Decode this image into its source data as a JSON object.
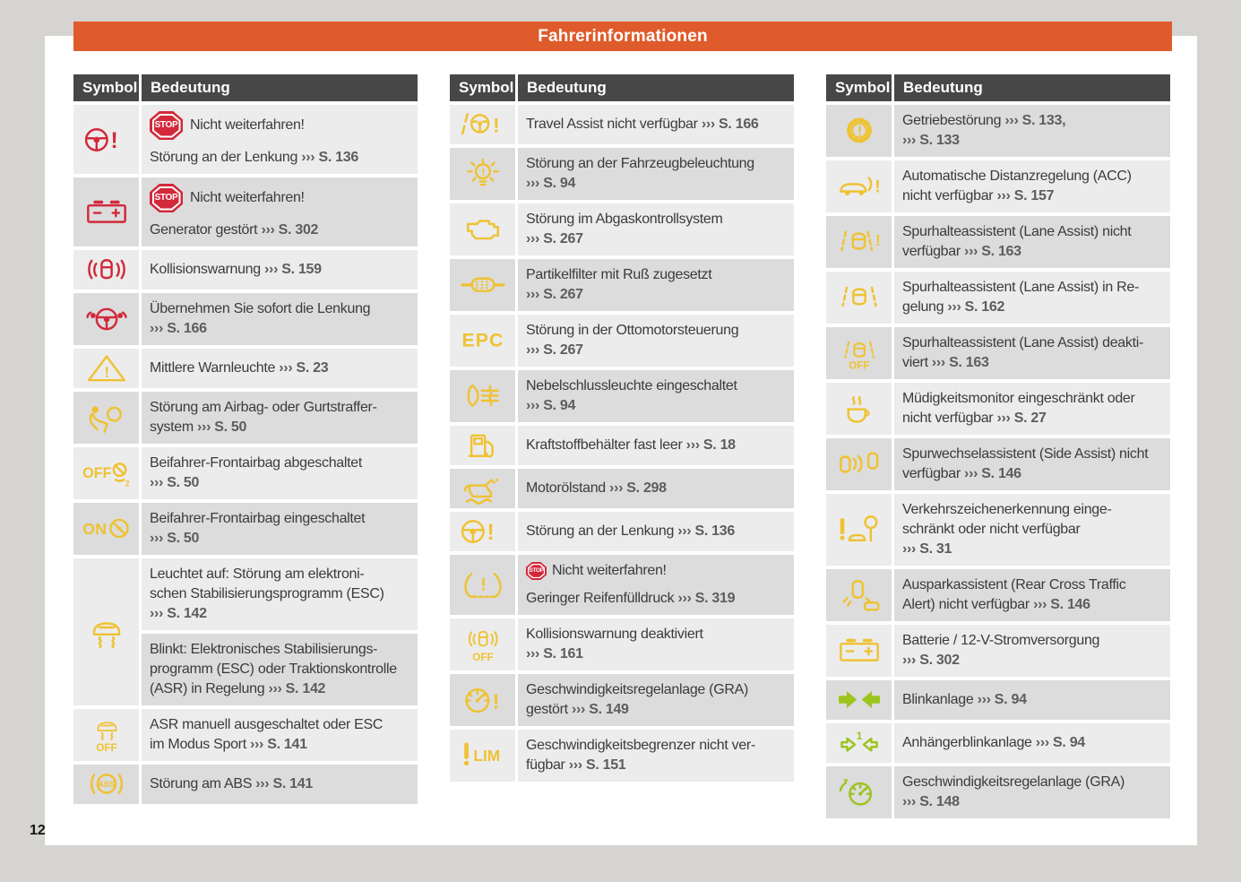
{
  "header": {
    "title": "Fahrerinformationen"
  },
  "page_number": "12",
  "stop_label": "STOP",
  "colors": {
    "red": "#d2293b",
    "yellow": "#efc233",
    "green": "#9cc41e",
    "header_orange": "#df5b2c",
    "table_header_bg": "#474747",
    "row_light": "#ececec",
    "row_dark": "#dcdcdc",
    "text": "#3b3b3b",
    "ref_text": "#5d5d5d"
  },
  "tables": [
    {
      "headers": {
        "symbol": "Symbol",
        "meaning": "Bedeutung"
      },
      "entries": [
        {
          "icon": "steering-wheel-warning-icon",
          "color": "red",
          "cells": [
            {
              "shade": "light",
              "lines": [
                [
                  "s:STOP",
                  "t:Nicht weiterfahren!"
                ],
                [
                  "t:Störung an der Lenkung ",
                  "r:››› S. 136"
                ]
              ]
            }
          ]
        },
        {
          "icon": "battery-icon",
          "color": "red",
          "cells": [
            {
              "shade": "dark",
              "lines": [
                [
                  "s:STOP",
                  "t:Nicht weiterfahren!"
                ],
                [
                  "t:Generator gestört ",
                  "r:››› S. 302"
                ]
              ]
            }
          ]
        },
        {
          "icon": "collision-warning-icon",
          "color": "red",
          "cells": [
            {
              "shade": "light",
              "lines": [
                [
                  "t:Kollisionswarnung ",
                  "r:››› S. 159"
                ]
              ]
            }
          ]
        },
        {
          "icon": "hands-on-steering-wheel-icon",
          "color": "red",
          "cells": [
            {
              "shade": "dark",
              "lines": [
                [
                  "t:Übernehmen Sie sofort die Lenkung"
                ],
                [
                  "r:››› S. 166"
                ]
              ]
            }
          ]
        },
        {
          "icon": "warning-triangle-icon",
          "color": "yellow",
          "cells": [
            {
              "shade": "light",
              "lines": [
                [
                  "t:Mittlere Warnleuchte ",
                  "r:››› S. 23"
                ]
              ]
            }
          ]
        },
        {
          "icon": "airbag-warning-icon",
          "color": "yellow",
          "cells": [
            {
              "shade": "dark",
              "lines": [
                [
                  "t:Störung am Airbag- oder Gurtstraffer-"
                ],
                [
                  "t:system ",
                  "r:››› S. 50"
                ]
              ]
            }
          ]
        },
        {
          "icon": "airbag-off-icon",
          "color": "yellow",
          "cells": [
            {
              "shade": "light",
              "lines": [
                [
                  "t:Beifahrer-Frontairbag abgeschaltet"
                ],
                [
                  "r:››› S. 50"
                ]
              ]
            }
          ]
        },
        {
          "icon": "airbag-on-icon",
          "color": "yellow",
          "cells": [
            {
              "shade": "dark",
              "lines": [
                [
                  "t:Beifahrer-Frontairbag eingeschaltet"
                ],
                [
                  "r:››› S. 50"
                ]
              ]
            }
          ]
        },
        {
          "icon": "esc-car-skid-icon",
          "color": "yellow",
          "cells": [
            {
              "shade": "light",
              "lines": [
                [
                  "t:Leuchtet auf: Störung am elektroni-"
                ],
                [
                  "t:schen Stabilisierungsprogramm (ESC)"
                ],
                [
                  "r:››› S. 142"
                ]
              ]
            },
            {
              "shade": "dark",
              "lines": [
                [
                  "t:Blinkt: Elektronisches Stabilisierungs-"
                ],
                [
                  "t:programm (ESC) oder Traktionskontrolle"
                ],
                [
                  "t:(ASR) in Regelung ",
                  "r:››› S. 142"
                ]
              ]
            }
          ]
        },
        {
          "icon": "esc-off-icon",
          "color": "yellow",
          "cells": [
            {
              "shade": "light",
              "lines": [
                [
                  "t:ASR manuell ausgeschaltet oder ESC"
                ],
                [
                  "t:im Modus Sport ",
                  "r:››› S. 141"
                ]
              ]
            }
          ]
        },
        {
          "icon": "abs-icon",
          "color": "yellow",
          "cells": [
            {
              "shade": "dark",
              "lines": [
                [
                  "t:Störung am ABS ",
                  "r:››› S. 141"
                ]
              ]
            }
          ]
        }
      ]
    },
    {
      "headers": {
        "symbol": "Symbol",
        "meaning": "Bedeutung"
      },
      "entries": [
        {
          "icon": "travel-assist-warning-icon",
          "color": "yellow",
          "cells": [
            {
              "shade": "light",
              "lines": [
                [
                  "t:Travel Assist nicht verfügbar ",
                  "r:››› S. 166"
                ]
              ]
            }
          ]
        },
        {
          "icon": "light-warning-icon",
          "color": "yellow",
          "cells": [
            {
              "shade": "dark",
              "lines": [
                [
                  "t:Störung an der Fahrzeugbeleuchtung"
                ],
                [
                  "r:››› S. 94"
                ]
              ]
            }
          ]
        },
        {
          "icon": "check-engine-icon",
          "color": "yellow",
          "cells": [
            {
              "shade": "light",
              "lines": [
                [
                  "t:Störung im Abgaskontrollsystem"
                ],
                [
                  "r:››› S. 267"
                ]
              ]
            }
          ]
        },
        {
          "icon": "particulate-filter-icon",
          "color": "yellow",
          "cells": [
            {
              "shade": "dark",
              "lines": [
                [
                  "t:Partikelfilter mit Ruß zugesetzt"
                ],
                [
                  "r:››› S. 267"
                ]
              ]
            }
          ]
        },
        {
          "icon": "epc-icon",
          "color": "yellow",
          "cells": [
            {
              "shade": "light",
              "lines": [
                [
                  "t:Störung in der Ottomotorsteuerung"
                ],
                [
                  "r:››› S. 267"
                ]
              ]
            }
          ]
        },
        {
          "icon": "rear-fog-light-icon",
          "color": "yellow",
          "cells": [
            {
              "shade": "dark",
              "lines": [
                [
                  "t:Nebelschlussleuchte eingeschaltet"
                ],
                [
                  "r:››› S. 94"
                ]
              ]
            }
          ]
        },
        {
          "icon": "fuel-pump-icon",
          "color": "yellow",
          "cells": [
            {
              "shade": "light",
              "lines": [
                [
                  "t:Kraftstoffbehälter fast leer ",
                  "r:››› S. 18"
                ]
              ]
            }
          ]
        },
        {
          "icon": "oil-can-icon",
          "color": "yellow",
          "cells": [
            {
              "shade": "dark",
              "lines": [
                [
                  "t:Motorölstand ",
                  "r:››› S. 298"
                ]
              ]
            }
          ]
        },
        {
          "icon": "steering-wheel-warning-icon",
          "color": "yellow",
          "cells": [
            {
              "shade": "light",
              "lines": [
                [
                  "t:Störung an der Lenkung ",
                  "r:››› S. 136"
                ]
              ]
            }
          ]
        },
        {
          "icon": "tpms-icon",
          "color": "yellow",
          "cells": [
            {
              "shade": "dark",
              "lines": [
                [
                  "ss:STOP",
                  "t:Nicht weiterfahren!"
                ],
                [
                  "t:Geringer Reifenfülldruck ",
                  "r:››› S. 319"
                ]
              ]
            }
          ]
        },
        {
          "icon": "collision-warning-off-icon",
          "color": "yellow",
          "cells": [
            {
              "shade": "light",
              "lines": [
                [
                  "t:Kollisionswarnung deaktiviert"
                ],
                [
                  "r:››› S. 161"
                ]
              ]
            }
          ]
        },
        {
          "icon": "cruise-warning-icon",
          "color": "yellow",
          "cells": [
            {
              "shade": "dark",
              "lines": [
                [
                  "t:Geschwindigkeitsregelanlage (GRA)"
                ],
                [
                  "t:gestört ",
                  "r:››› S. 149"
                ]
              ]
            }
          ]
        },
        {
          "icon": "speed-limiter-icon",
          "color": "yellow",
          "cells": [
            {
              "shade": "light",
              "lines": [
                [
                  "t:Geschwindigkeitsbegrenzer nicht ver-"
                ],
                [
                  "t:fügbar ",
                  "r:››› S. 151"
                ]
              ]
            }
          ]
        }
      ]
    },
    {
      "headers": {
        "symbol": "Symbol",
        "meaning": "Bedeutung"
      },
      "entries": [
        {
          "icon": "gear-warning-icon",
          "color": "yellow",
          "cells": [
            {
              "shade": "dark",
              "lines": [
                [
                  "t:Getriebestörung ",
                  "r:››› S. 133,"
                ],
                [
                  "r:››› S. 133"
                ]
              ]
            }
          ]
        },
        {
          "icon": "acc-warning-icon",
          "color": "yellow",
          "cells": [
            {
              "shade": "light",
              "lines": [
                [
                  "t:Automatische Distanzregelung (ACC)"
                ],
                [
                  "t:nicht verfügbar ",
                  "r:››› S. 157"
                ]
              ]
            }
          ]
        },
        {
          "icon": "lane-assist-warning-icon",
          "color": "yellow",
          "cells": [
            {
              "shade": "dark",
              "lines": [
                [
                  "t:Spurhalteassistent (Lane Assist) nicht"
                ],
                [
                  "t:verfügbar ",
                  "r:››› S. 163"
                ]
              ]
            }
          ]
        },
        {
          "icon": "lane-assist-icon",
          "color": "yellow",
          "cells": [
            {
              "shade": "light",
              "lines": [
                [
                  "t:Spurhalteassistent (Lane Assist) in Re-"
                ],
                [
                  "t:gelung ",
                  "r:››› S. 162"
                ]
              ]
            }
          ]
        },
        {
          "icon": "lane-assist-off-icon",
          "color": "yellow",
          "cells": [
            {
              "shade": "dark",
              "lines": [
                [
                  "t:Spurhalteassistent (Lane Assist) deakti-"
                ],
                [
                  "t:viert ",
                  "r:››› S. 163"
                ]
              ]
            }
          ]
        },
        {
          "icon": "drowsiness-icon",
          "color": "yellow",
          "cells": [
            {
              "shade": "light",
              "lines": [
                [
                  "t:Müdigkeitsmonitor eingeschränkt oder"
                ],
                [
                  "t:nicht verfügbar ",
                  "r:››› S. 27"
                ]
              ]
            }
          ]
        },
        {
          "icon": "side-assist-icon",
          "color": "yellow",
          "cells": [
            {
              "shade": "dark",
              "lines": [
                [
                  "t:Spurwechselassistent (Side Assist) nicht"
                ],
                [
                  "t:verfügbar ",
                  "r:››› S. 146"
                ]
              ]
            }
          ]
        },
        {
          "icon": "traffic-sign-icon",
          "color": "yellow",
          "cells": [
            {
              "shade": "light",
              "lines": [
                [
                  "t:Verkehrszeichenerkennung einge-"
                ],
                [
                  "t:schränkt oder nicht verfügbar"
                ],
                [
                  "r:››› S. 31"
                ]
              ]
            }
          ]
        },
        {
          "icon": "rear-cross-traffic-icon",
          "color": "yellow",
          "cells": [
            {
              "shade": "dark",
              "lines": [
                [
                  "t:Ausparkassistent (Rear Cross Traffic"
                ],
                [
                  "t:Alert) nicht verfügbar ",
                  "r:››› S. 146"
                ]
              ]
            }
          ]
        },
        {
          "icon": "battery-icon",
          "color": "yellow",
          "cells": [
            {
              "shade": "light",
              "lines": [
                [
                  "t:Batterie / 12-V-Stromversorgung"
                ],
                [
                  "r:››› S. 302"
                ]
              ]
            }
          ]
        },
        {
          "icon": "turn-signals-icon",
          "color": "green",
          "cells": [
            {
              "shade": "dark",
              "lines": [
                [
                  "t:Blinkanlage ",
                  "r:››› S. 94"
                ]
              ]
            }
          ]
        },
        {
          "icon": "trailer-turn-signals-icon",
          "color": "green",
          "cells": [
            {
              "shade": "light",
              "lines": [
                [
                  "t:Anhängerblinkanlage ",
                  "r:››› S. 94"
                ]
              ]
            }
          ]
        },
        {
          "icon": "cruise-control-icon",
          "color": "green",
          "cells": [
            {
              "shade": "dark",
              "lines": [
                [
                  "t:Geschwindigkeitsregelanlage (GRA)"
                ],
                [
                  "r:››› S. 148"
                ]
              ]
            }
          ]
        }
      ]
    }
  ]
}
